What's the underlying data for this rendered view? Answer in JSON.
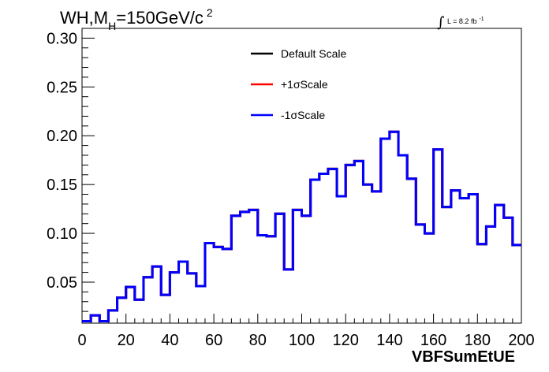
{
  "chart_data": {
    "type": "line",
    "title": {
      "main": "WH,M",
      "sub": "H",
      "after": "=150GeV/c",
      "sup": "2"
    },
    "lumi": {
      "symbol": "∫",
      "text": "L = 8.2 fb",
      "sup": "-1"
    },
    "xlabel": "VBFSumEtUE",
    "ylabel": "",
    "xlim": [
      0,
      200
    ],
    "ylim": [
      0.008,
      0.31
    ],
    "x_ticks": [
      0,
      20,
      40,
      60,
      80,
      100,
      120,
      140,
      160,
      180,
      200
    ],
    "x_tick_labels": [
      "0",
      "20",
      "40",
      "60",
      "80",
      "100",
      "120",
      "140",
      "160",
      "180",
      "200"
    ],
    "y_ticks": [
      0.05,
      0.1,
      0.15,
      0.2,
      0.25,
      0.3
    ],
    "y_tick_labels": [
      "0.05",
      "0.10",
      "0.15",
      "0.20",
      "0.25",
      "0.30"
    ],
    "bin_edges": [
      0,
      4,
      8,
      12,
      16,
      20,
      24,
      28,
      32,
      36,
      40,
      44,
      48,
      52,
      56,
      60,
      64,
      68,
      72,
      76,
      80,
      84,
      88,
      92,
      96,
      100,
      104,
      108,
      112,
      116,
      120,
      124,
      128,
      132,
      136,
      140,
      144,
      148,
      152,
      156,
      160,
      164,
      168,
      172,
      176,
      180,
      184,
      188,
      192,
      196,
      200
    ],
    "series": [
      {
        "name": "Default Scale",
        "color": "#000000",
        "values": [
          0.01,
          0.016,
          0.01,
          0.021,
          0.034,
          0.045,
          0.032,
          0.055,
          0.066,
          0.037,
          0.06,
          0.071,
          0.059,
          0.046,
          0.09,
          0.086,
          0.084,
          0.118,
          0.122,
          0.124,
          0.098,
          0.097,
          0.12,
          0.063,
          0.124,
          0.118,
          0.155,
          0.161,
          0.166,
          0.138,
          0.17,
          0.174,
          0.15,
          0.143,
          0.197,
          0.204,
          0.18,
          0.156,
          0.109,
          0.1,
          0.186,
          0.127,
          0.144,
          0.136,
          0.14,
          0.089,
          0.107,
          0.129,
          0.116,
          0.088
        ]
      },
      {
        "name": "+1σScale",
        "color": "#ff0000",
        "values": [
          0.01,
          0.016,
          0.01,
          0.021,
          0.034,
          0.045,
          0.032,
          0.055,
          0.066,
          0.037,
          0.06,
          0.071,
          0.059,
          0.046,
          0.09,
          0.086,
          0.084,
          0.118,
          0.122,
          0.124,
          0.098,
          0.097,
          0.12,
          0.063,
          0.124,
          0.118,
          0.155,
          0.161,
          0.166,
          0.138,
          0.17,
          0.174,
          0.15,
          0.143,
          0.197,
          0.204,
          0.18,
          0.156,
          0.109,
          0.1,
          0.186,
          0.127,
          0.144,
          0.136,
          0.14,
          0.089,
          0.107,
          0.129,
          0.116,
          0.088
        ]
      },
      {
        "name": "-1σScale",
        "color": "#0000ff",
        "values": [
          0.01,
          0.016,
          0.01,
          0.021,
          0.034,
          0.045,
          0.032,
          0.055,
          0.066,
          0.037,
          0.06,
          0.071,
          0.059,
          0.046,
          0.09,
          0.086,
          0.084,
          0.118,
          0.122,
          0.124,
          0.098,
          0.097,
          0.12,
          0.063,
          0.124,
          0.118,
          0.155,
          0.161,
          0.166,
          0.138,
          0.17,
          0.174,
          0.15,
          0.143,
          0.197,
          0.204,
          0.18,
          0.156,
          0.109,
          0.1,
          0.186,
          0.127,
          0.144,
          0.136,
          0.14,
          0.089,
          0.107,
          0.129,
          0.116,
          0.088
        ]
      }
    ],
    "legend_position": "top-center",
    "grid": false
  }
}
